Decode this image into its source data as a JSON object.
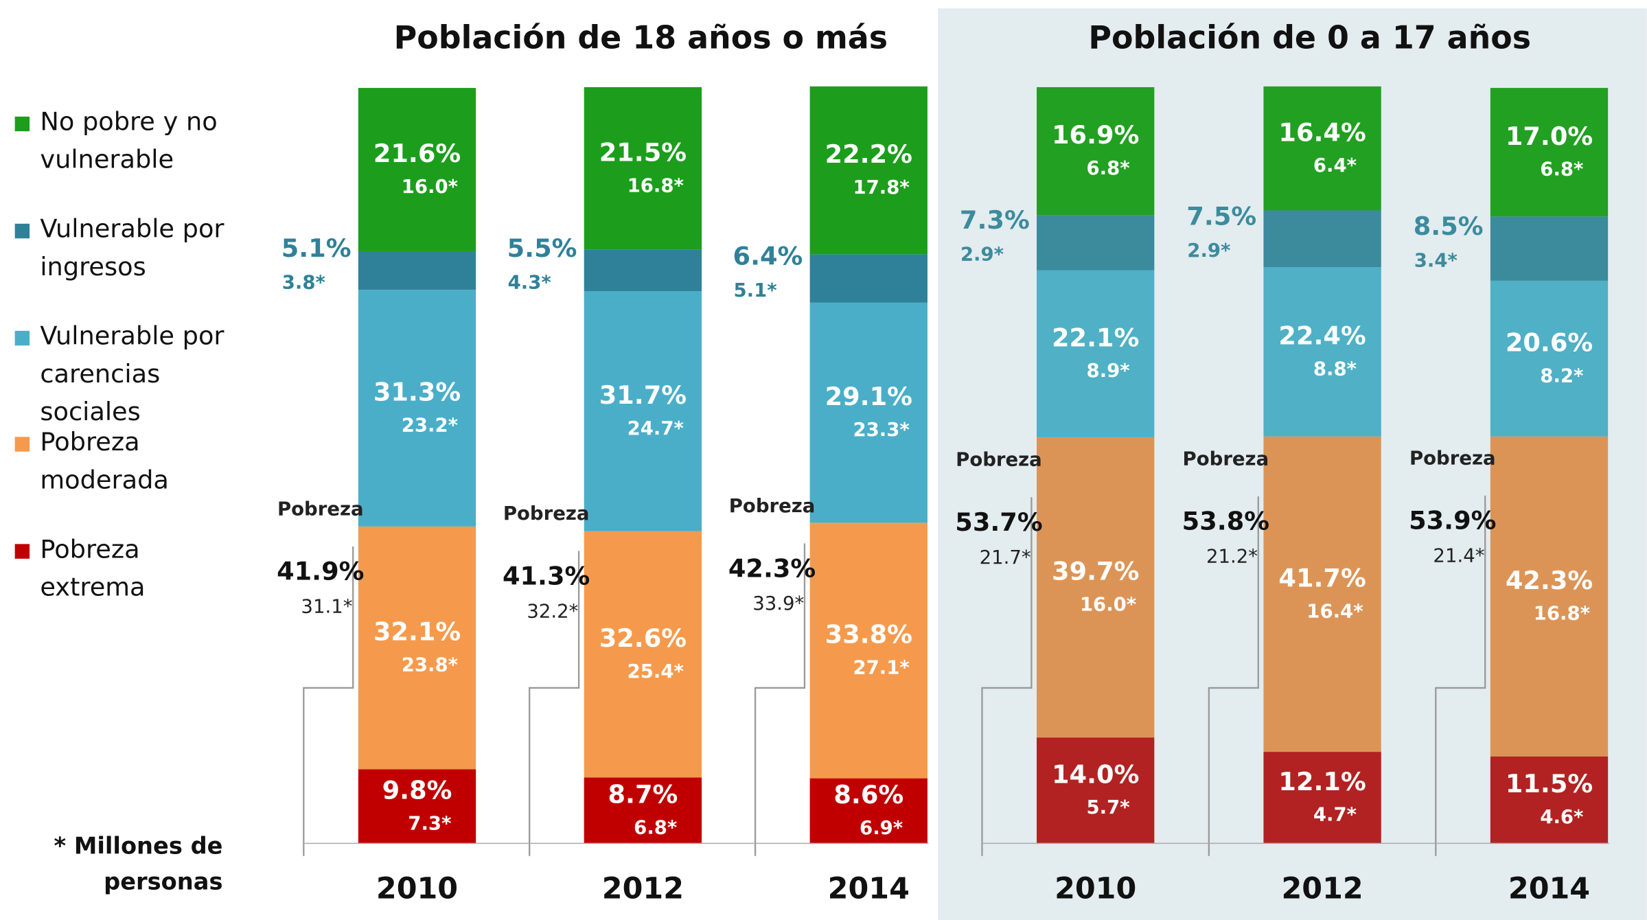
{
  "chart_data": [
    {
      "type": "stacked_bar",
      "title": "Población de 18 años o más",
      "categories": [
        "2010",
        "2012",
        "2014"
      ],
      "ylim": [
        0,
        100
      ],
      "series": [
        {
          "name": "No pobre y no vulnerable",
          "color": "#1c9e1c",
          "values": [
            21.6,
            21.5,
            22.2
          ],
          "value_labels": [
            "21.6%",
            "21.5%",
            "22.2%"
          ],
          "millions_labels": [
            "16.0*",
            "16.8*",
            "17.8*"
          ]
        },
        {
          "name": "Vulnerable por ingresos",
          "color": "#2f8199",
          "values": [
            5.1,
            5.5,
            6.4
          ],
          "value_labels": [
            "5.1%",
            "5.5%",
            "6.4%"
          ],
          "millions_labels": [
            "3.8*",
            "4.3*",
            "5.1*"
          ]
        },
        {
          "name": "Vulnerable por carencias sociales",
          "color": "#4aaec8",
          "values": [
            31.3,
            31.7,
            29.1
          ],
          "value_labels": [
            "31.3%",
            "31.7%",
            "29.1%"
          ],
          "millions_labels": [
            "23.2*",
            "24.7*",
            "23.3*"
          ]
        },
        {
          "name": "Pobreza moderada",
          "color": "#f59a4c",
          "values": [
            32.1,
            32.6,
            33.8
          ],
          "value_labels": [
            "32.1%",
            "32.6%",
            "33.8%"
          ],
          "millions_labels": [
            "23.8*",
            "25.4*",
            "27.1*"
          ]
        },
        {
          "name": "Pobreza extrema",
          "color": "#c00000",
          "values": [
            9.8,
            8.7,
            8.6
          ],
          "value_labels": [
            "9.8%",
            "8.7%",
            "8.6%"
          ],
          "millions_labels": [
            "7.3*",
            "6.8*",
            "6.9*"
          ]
        }
      ],
      "poverty": {
        "label": "Pobreza",
        "values": [
          41.9,
          41.3,
          42.3
        ],
        "value_labels": [
          "41.9%",
          "41.3%",
          "42.3%"
        ],
        "millions_labels": [
          "31.1*",
          "32.2*",
          "33.9*"
        ]
      }
    },
    {
      "type": "stacked_bar",
      "title": "Población de 0 a 17 años",
      "categories": [
        "2010",
        "2012",
        "2014"
      ],
      "ylim": [
        0,
        100
      ],
      "series": [
        {
          "color": "#22a022",
          "values": [
            16.9,
            16.4,
            17.0
          ],
          "value_labels": [
            "16.9%",
            "16.4%",
            "17.0%"
          ],
          "millions_labels": [
            "6.8*",
            "6.4*",
            "6.8*"
          ]
        },
        {
          "color": "#3c8b9d",
          "values": [
            7.3,
            7.5,
            8.5
          ],
          "value_labels": [
            "7.3%",
            "7.5%",
            "8.5%"
          ],
          "millions_labels": [
            "2.9*",
            "2.9*",
            "3.4*"
          ]
        },
        {
          "color": "#4fb0c6",
          "values": [
            22.1,
            22.4,
            20.6
          ],
          "value_labels": [
            "22.1%",
            "22.4%",
            "20.6%"
          ],
          "millions_labels": [
            "8.9*",
            "8.8*",
            "8.2*"
          ]
        },
        {
          "color": "#dc9456",
          "values": [
            39.7,
            41.7,
            42.3
          ],
          "value_labels": [
            "39.7%",
            "41.7%",
            "42.3%"
          ],
          "millions_labels": [
            "16.0*",
            "16.4*",
            "16.8*"
          ]
        },
        {
          "color": "#b22222",
          "values": [
            14.0,
            12.1,
            11.5
          ],
          "value_labels": [
            "14.0%",
            "12.1%",
            "11.5%"
          ],
          "millions_labels": [
            "5.7*",
            "4.7*",
            "4.6*"
          ]
        }
      ],
      "poverty": {
        "label": "Pobreza",
        "values": [
          53.7,
          53.8,
          53.9
        ],
        "value_labels": [
          "53.7%",
          "53.8%",
          "53.9%"
        ],
        "millions_labels": [
          "21.7*",
          "21.2*",
          "21.4*"
        ]
      }
    }
  ],
  "footnote": "* Millones de personas"
}
